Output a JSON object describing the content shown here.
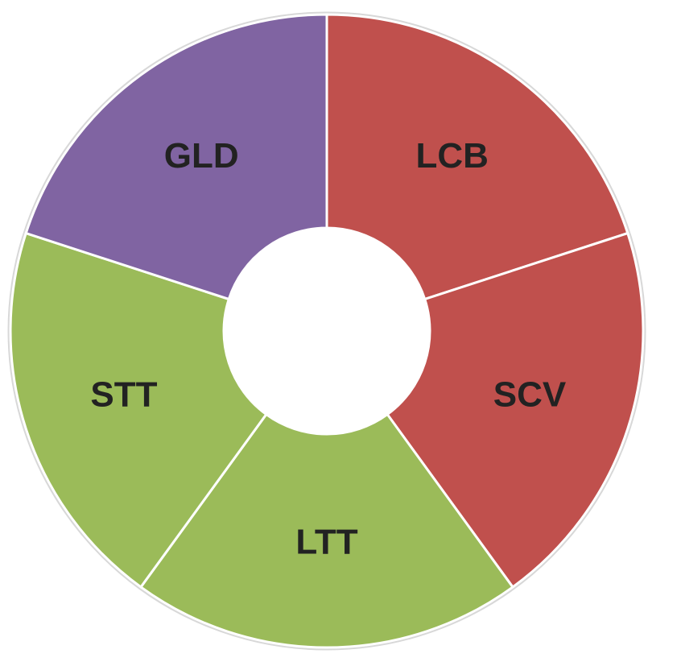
{
  "chart_data": {
    "type": "donut",
    "categories": [
      "LCB",
      "SCV",
      "LTT",
      "STT",
      "GLD"
    ],
    "values": [
      20,
      20,
      20,
      20,
      20
    ],
    "colors": [
      "#c0504d",
      "#c0504d",
      "#9bbb59",
      "#9bbb59",
      "#8064a2"
    ]
  }
}
